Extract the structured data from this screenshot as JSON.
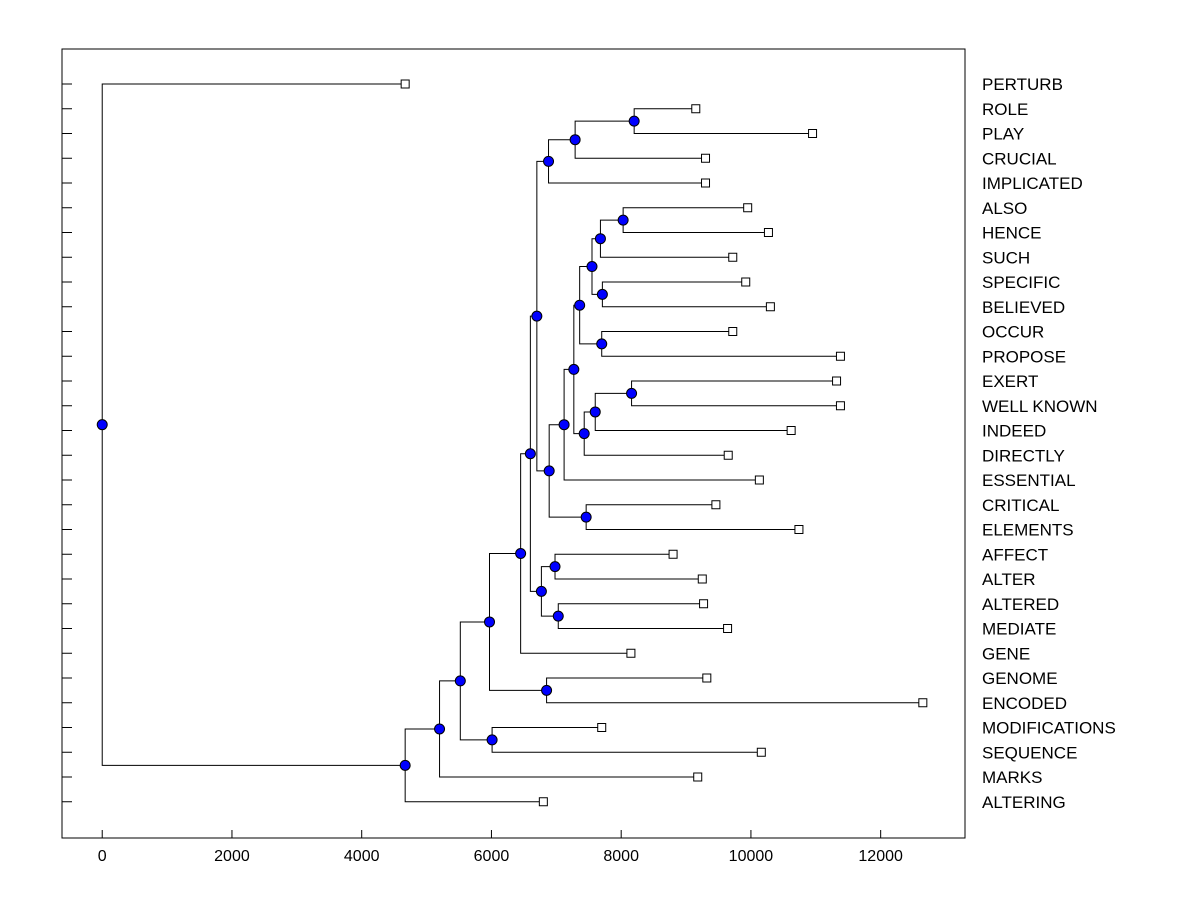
{
  "chart_data": {
    "type": "dendrogram",
    "title": "",
    "xlabel": "",
    "ylabel": "",
    "xlim": [
      -620,
      13300
    ],
    "x_ticks": [
      0,
      2000,
      4000,
      6000,
      8000,
      10000,
      12000
    ],
    "x_tick_labels": [
      "0",
      "2000",
      "4000",
      "6000",
      "8000",
      "10000",
      "12000"
    ],
    "grid": false,
    "leaves": [
      {
        "name": "PERTURB",
        "value": 4670
      },
      {
        "name": "ROLE",
        "value": 9150
      },
      {
        "name": "PLAY",
        "value": 10950
      },
      {
        "name": "CRUCIAL",
        "value": 9300
      },
      {
        "name": "IMPLICATED",
        "value": 9300
      },
      {
        "name": "ALSO",
        "value": 9950
      },
      {
        "name": "HENCE",
        "value": 10270
      },
      {
        "name": "SUCH",
        "value": 9720
      },
      {
        "name": "SPECIFIC",
        "value": 9920
      },
      {
        "name": "BELIEVED",
        "value": 10300
      },
      {
        "name": "OCCUR",
        "value": 9720
      },
      {
        "name": "PROPOSE",
        "value": 11380
      },
      {
        "name": "EXERT",
        "value": 11320
      },
      {
        "name": "WELL KNOWN",
        "value": 11380
      },
      {
        "name": "INDEED",
        "value": 10620
      },
      {
        "name": "DIRECTLY",
        "value": 9650
      },
      {
        "name": "ESSENTIAL",
        "value": 10130
      },
      {
        "name": "CRITICAL",
        "value": 9460
      },
      {
        "name": "ELEMENTS",
        "value": 10740
      },
      {
        "name": "AFFECT",
        "value": 8800
      },
      {
        "name": "ALTER",
        "value": 9250
      },
      {
        "name": "ALTERED",
        "value": 9270
      },
      {
        "name": "MEDIATE",
        "value": 9640
      },
      {
        "name": "GENE",
        "value": 8150
      },
      {
        "name": "GENOME",
        "value": 9320
      },
      {
        "name": "ENCODED",
        "value": 12650
      },
      {
        "name": "MODIFICATIONS",
        "value": 7700
      },
      {
        "name": "SEQUENCE",
        "value": 10160
      },
      {
        "name": "MARKS",
        "value": 9180
      },
      {
        "name": "ALTERING",
        "value": 6800
      }
    ],
    "merges": [
      {
        "id": "n_rp",
        "value": 8200,
        "children": [
          "ROLE",
          "PLAY"
        ]
      },
      {
        "id": "n_rpc",
        "value": 7290,
        "children": [
          "n_rp",
          "CRUCIAL"
        ]
      },
      {
        "id": "n_rpci",
        "value": 6880,
        "children": [
          "n_rpc",
          "IMPLICATED"
        ]
      },
      {
        "id": "n_ah",
        "value": 8030,
        "children": [
          "ALSO",
          "HENCE"
        ]
      },
      {
        "id": "n_ahs",
        "value": 7680,
        "children": [
          "n_ah",
          "SUCH"
        ]
      },
      {
        "id": "n_sb",
        "value": 7710,
        "children": [
          "SPECIFIC",
          "BELIEVED"
        ]
      },
      {
        "id": "n_ahssb",
        "value": 7550,
        "children": [
          "n_ahs",
          "n_sb"
        ]
      },
      {
        "id": "n_op",
        "value": 7700,
        "children": [
          "OCCUR",
          "PROPOSE"
        ]
      },
      {
        "id": "n_g5",
        "value": 7360,
        "children": [
          "n_ahssb",
          "n_op"
        ]
      },
      {
        "id": "n_ew",
        "value": 8160,
        "children": [
          "EXERT",
          "WELL KNOWN"
        ]
      },
      {
        "id": "n_ewi",
        "value": 7600,
        "children": [
          "n_ew",
          "INDEED"
        ]
      },
      {
        "id": "n_ewid",
        "value": 7430,
        "children": [
          "n_ewi",
          "DIRECTLY"
        ]
      },
      {
        "id": "n_g6",
        "value": 7270,
        "children": [
          "n_g5",
          "n_ewid"
        ]
      },
      {
        "id": "n_g7",
        "value": 7120,
        "children": [
          "n_g6",
          "ESSENTIAL"
        ]
      },
      {
        "id": "n_ce",
        "value": 7460,
        "children": [
          "CRITICAL",
          "ELEMENTS"
        ]
      },
      {
        "id": "n_g8",
        "value": 6890,
        "children": [
          "n_g7",
          "n_ce"
        ]
      },
      {
        "id": "n_g9",
        "value": 6700,
        "children": [
          "n_rpci",
          "n_g8"
        ]
      },
      {
        "id": "n_aa",
        "value": 6980,
        "children": [
          "AFFECT",
          "ALTER"
        ]
      },
      {
        "id": "n_am",
        "value": 7030,
        "children": [
          "ALTERED",
          "MEDIATE"
        ]
      },
      {
        "id": "n_aaam",
        "value": 6770,
        "children": [
          "n_aa",
          "n_am"
        ]
      },
      {
        "id": "n_g10",
        "value": 6600,
        "children": [
          "n_g9",
          "n_aaam"
        ]
      },
      {
        "id": "n_g11",
        "value": 6450,
        "children": [
          "n_g10",
          "GENE"
        ]
      },
      {
        "id": "n_ge",
        "value": 6850,
        "children": [
          "GENOME",
          "ENCODED"
        ]
      },
      {
        "id": "n_g12",
        "value": 5970,
        "children": [
          "n_g11",
          "n_ge"
        ]
      },
      {
        "id": "n_ms",
        "value": 6010,
        "children": [
          "MODIFICATIONS",
          "SEQUENCE"
        ]
      },
      {
        "id": "n_g13",
        "value": 5520,
        "children": [
          "n_g12",
          "n_ms"
        ]
      },
      {
        "id": "n_g14",
        "value": 5200,
        "children": [
          "n_g13",
          "MARKS"
        ]
      },
      {
        "id": "n_g15",
        "value": 4670,
        "children": [
          "n_g14",
          "ALTERING"
        ]
      },
      {
        "id": "root",
        "value": 0,
        "children": [
          "PERTURB",
          "n_g15"
        ]
      }
    ]
  },
  "colors": {
    "line": "#000000",
    "node_fill": "#0000ff",
    "leaf_fill": "#ffffff",
    "background": "#ffffff"
  }
}
